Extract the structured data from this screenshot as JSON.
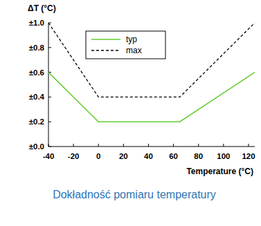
{
  "chart_data": {
    "type": "line",
    "title": "Dokładność pomiaru temperatury",
    "x_label": "Temperature (°C)",
    "y_label": "ΔT (°C)",
    "x": [
      -40,
      0,
      65,
      125
    ],
    "series": [
      {
        "name": "typ",
        "color": "#66cc33",
        "line_style": "solid",
        "values": [
          0.6,
          0.2,
          0.2,
          0.6
        ]
      },
      {
        "name": "max",
        "color": "#000000",
        "line_style": "dashed",
        "values": [
          1.0,
          0.4,
          0.4,
          1.0
        ]
      }
    ],
    "xlim": [
      -40,
      125
    ],
    "xticks": [
      -40,
      -20,
      0,
      20,
      40,
      60,
      80,
      100,
      120
    ],
    "ylim": [
      0,
      1
    ],
    "yticks": [
      {
        "value": 0,
        "label": "±0.0"
      },
      {
        "value": 0.2,
        "label": "±0.2"
      },
      {
        "value": 0.4,
        "label": "±0.4"
      },
      {
        "value": 0.6,
        "label": "±0.6"
      },
      {
        "value": 0.8,
        "label": "±0.8"
      },
      {
        "value": 1,
        "label": "±1.0"
      }
    ],
    "grid": false,
    "legend": "top"
  }
}
